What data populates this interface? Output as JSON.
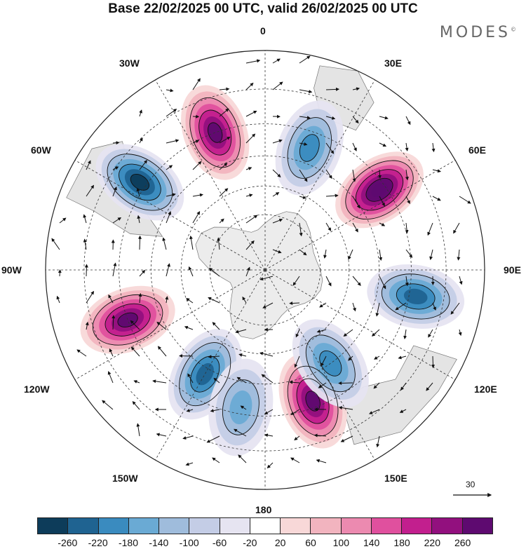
{
  "title": "Base 22/02/2025 00 UTC, valid 26/02/2025 00 UTC",
  "brand": "MODES",
  "brand_mark": "©",
  "longitude_labels": [
    "0",
    "30E",
    "60E",
    "90E",
    "120E",
    "150E",
    "180",
    "150W",
    "120W",
    "90W",
    "60W",
    "30W"
  ],
  "reference_vector_label": "30",
  "colorbar": {
    "colors": [
      "#0d3c5a",
      "#1f6391",
      "#3a8bbf",
      "#6aaad4",
      "#9fbcdc",
      "#c4cde6",
      "#e6e4f1",
      "#ffffff",
      "#f8d8d8",
      "#f2b4bf",
      "#ec8ab0",
      "#e0509e",
      "#c21f8e",
      "#92107e",
      "#5e0a70"
    ],
    "tick_labels": [
      "-260",
      "-220",
      "-180",
      "-140",
      "-100",
      "-60",
      "-20",
      "20",
      "60",
      "100",
      "140",
      "180",
      "220",
      "260"
    ]
  },
  "anomalies": [
    {
      "name": "high-1",
      "lon": -20,
      "lat": -40,
      "value": 260
    },
    {
      "name": "high-2",
      "lon": 55,
      "lat": -42,
      "value": 300
    },
    {
      "name": "high-3",
      "lon": 160,
      "lat": -42,
      "value": 280
    },
    {
      "name": "high-4",
      "lon": -110,
      "lat": -40,
      "value": 280
    },
    {
      "name": "low-1",
      "lon": -55,
      "lat": -38,
      "value": -280
    },
    {
      "name": "low-2",
      "lon": 20,
      "lat": -45,
      "value": -200
    },
    {
      "name": "low-3",
      "lon": 100,
      "lat": -38,
      "value": -230
    },
    {
      "name": "low-4",
      "lon": 145,
      "lat": -50,
      "value": -200
    },
    {
      "name": "low-5",
      "lon": -150,
      "lat": -48,
      "value": -220
    },
    {
      "name": "low-6",
      "lon": -170,
      "lat": -42,
      "value": -150
    }
  ]
}
